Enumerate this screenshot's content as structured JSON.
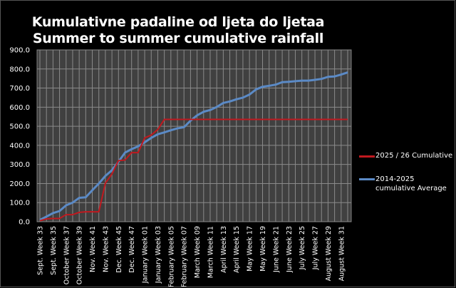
{
  "chart_data": {
    "type": "line",
    "title": [
      "Kumulativne padaline od ljeta do ljetaa",
      "Summer to summer cumulative rainfall"
    ],
    "xlabel": "",
    "ylabel": "",
    "ylim": [
      0,
      900
    ],
    "yticks": [
      "0.0",
      "100.0",
      "200.0",
      "300.0",
      "400.0",
      "500.0",
      "600.0",
      "700.0",
      "800.0",
      "900.0"
    ],
    "grid": true,
    "legend_position": "right",
    "tick_labels": [
      "Sept. Week 33",
      "Sept. Week 35",
      "October Week 37",
      "October Week 39",
      "Nov. Week 41",
      "Nov. Week 43",
      "Dec. Week 45",
      "Dec. Week 47",
      "January Week 01",
      "January Week 03",
      "February Week 05",
      "February Week 07",
      "March Week 09",
      "March Week 11",
      "April Week 13",
      "April Week 15",
      "May Week 17",
      "May Week 19",
      "June Week 21",
      "June Week 23",
      "July Week 25",
      "July Week 27",
      "August Week 29",
      "August Week 31"
    ],
    "series": [
      {
        "name": "2025 / 26 Cumulative",
        "color": "#c0191f",
        "values": [
          5,
          15,
          17,
          17,
          37,
          37,
          49,
          52,
          52,
          52,
          202,
          250,
          320,
          323,
          362,
          362,
          439,
          454,
          483,
          536,
          536,
          536,
          536,
          536,
          536,
          536,
          536,
          536,
          536,
          536,
          536,
          536,
          536,
          536,
          536,
          536,
          536,
          536,
          536,
          536,
          536,
          536,
          536,
          536,
          536,
          536,
          536,
          536
        ]
      },
      {
        "name": "2014-2025 cumulative Average",
        "color": "#5b8ac6",
        "values": [
          9,
          27,
          45,
          56,
          86,
          100,
          125,
          128,
          165,
          200,
          240,
          270,
          314,
          362,
          380,
          395,
          416,
          439,
          458,
          468,
          479,
          489,
          495,
          529,
          557,
          576,
          585,
          601,
          622,
          630,
          641,
          650,
          666,
          693,
          707,
          712,
          718,
          731,
          733,
          736,
          739,
          739,
          743,
          748,
          759,
          761,
          771,
          782
        ]
      }
    ]
  }
}
